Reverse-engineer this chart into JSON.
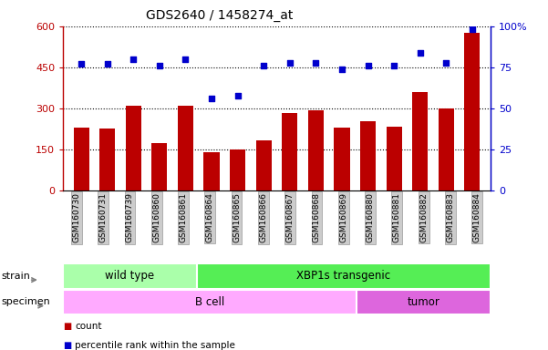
{
  "title": "GDS2640 / 1458274_at",
  "samples": [
    "GSM160730",
    "GSM160731",
    "GSM160739",
    "GSM160860",
    "GSM160861",
    "GSM160864",
    "GSM160865",
    "GSM160866",
    "GSM160867",
    "GSM160868",
    "GSM160869",
    "GSM160880",
    "GSM160881",
    "GSM160882",
    "GSM160883",
    "GSM160884"
  ],
  "counts": [
    230,
    228,
    310,
    175,
    310,
    140,
    152,
    185,
    285,
    295,
    230,
    255,
    232,
    360,
    300,
    575
  ],
  "percentiles": [
    77,
    77,
    80,
    76,
    80,
    56,
    58,
    76,
    78,
    78,
    74,
    76,
    76,
    84,
    78,
    98
  ],
  "bar_color": "#bb0000",
  "dot_color": "#0000cc",
  "ylim_left": [
    0,
    600
  ],
  "ylim_right": [
    0,
    100
  ],
  "yticks_left": [
    0,
    150,
    300,
    450,
    600
  ],
  "yticks_right": [
    0,
    25,
    50,
    75,
    100
  ],
  "ytick_labels_right": [
    "0",
    "25",
    "50",
    "75",
    "100%"
  ],
  "strain_groups": [
    {
      "label": "wild type",
      "start": 0,
      "end": 5,
      "color": "#aaffaa"
    },
    {
      "label": "XBP1s transgenic",
      "start": 5,
      "end": 16,
      "color": "#55ee55"
    }
  ],
  "specimen_groups": [
    {
      "label": "B cell",
      "start": 0,
      "end": 11,
      "color": "#ffaaff"
    },
    {
      "label": "tumor",
      "start": 11,
      "end": 16,
      "color": "#dd66dd"
    }
  ],
  "legend_items": [
    {
      "label": "count",
      "color": "#bb0000"
    },
    {
      "label": "percentile rank within the sample",
      "color": "#0000cc"
    }
  ],
  "background_color": "#ffffff"
}
